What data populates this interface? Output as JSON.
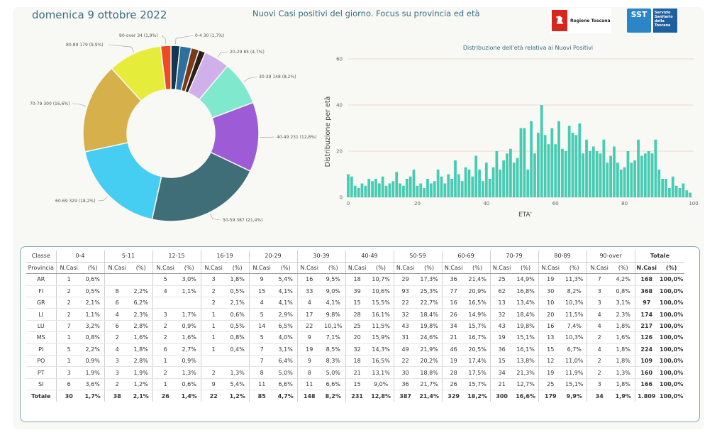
{
  "header": {
    "date": "domenica 9 ottobre 2022",
    "title": "Nuovi Casi positivi del giorno. Focus su provincia ed età",
    "logo_rt_text": "Regione Toscana",
    "logo_sst_abbr": "SST",
    "logo_sst_text": "Servizio Sanitario della Toscana"
  },
  "chart_data": [
    {
      "type": "pie",
      "variant": "donut",
      "slices": [
        {
          "label": "0-4 30 (1,7%)",
          "value": 30,
          "color": "#11384f"
        },
        {
          "label": "5-11",
          "value": 38,
          "color": "#2f6f9e"
        },
        {
          "label": "12-15",
          "value": 26,
          "color": "#7a3a18"
        },
        {
          "label": "16-19",
          "value": 22,
          "color": "#2b1f1a"
        },
        {
          "label": "20-29 85 (4,7%)",
          "value": 85,
          "color": "#d0b0ea"
        },
        {
          "label": "30-39 148 (8,2%)",
          "value": 148,
          "color": "#7fe8cd"
        },
        {
          "label": "40-49 231 (12,8%)",
          "value": 231,
          "color": "#9d5bd6"
        },
        {
          "label": "50-59 387 (21,4%)",
          "value": 387,
          "color": "#3f6e78"
        },
        {
          "label": "60-69 329 (18,2%)",
          "value": 329,
          "color": "#45cdf2"
        },
        {
          "label": "70-79 300 (16,6%)",
          "value": 300,
          "color": "#d6b04a"
        },
        {
          "label": "80-89 179 (9,9%)",
          "value": 179,
          "color": "#e6ec3a"
        },
        {
          "label": "90-over 34 (1,9%)",
          "value": 34,
          "color": "#ee4a24"
        }
      ]
    },
    {
      "type": "bar",
      "title": "Distribuzione dell'età relativa ai Nuovi Positivi",
      "xlabel": "ETA'",
      "ylabel": "Distribuzione per età",
      "xlim": [
        0,
        100
      ],
      "ylim": [
        0,
        60
      ],
      "xticks": [
        0,
        20,
        40,
        60,
        80,
        100
      ],
      "yticks": [
        0,
        20,
        40,
        60
      ],
      "color": "#48cbb3",
      "x": [
        0,
        1,
        2,
        3,
        4,
        5,
        6,
        7,
        8,
        9,
        10,
        11,
        12,
        13,
        14,
        15,
        16,
        17,
        18,
        19,
        20,
        21,
        22,
        23,
        24,
        25,
        26,
        27,
        28,
        29,
        30,
        31,
        32,
        33,
        34,
        35,
        36,
        37,
        38,
        39,
        40,
        41,
        42,
        43,
        44,
        45,
        46,
        47,
        48,
        49,
        50,
        51,
        52,
        53,
        54,
        55,
        56,
        57,
        58,
        59,
        60,
        61,
        62,
        63,
        64,
        65,
        66,
        67,
        68,
        69,
        70,
        71,
        72,
        73,
        74,
        75,
        76,
        77,
        78,
        79,
        80,
        81,
        82,
        83,
        84,
        85,
        86,
        87,
        88,
        89,
        90,
        91,
        92,
        93,
        94,
        95,
        96,
        97,
        98,
        99
      ],
      "values": [
        10,
        9,
        5,
        4,
        6,
        5,
        8,
        7,
        8,
        6,
        9,
        5,
        6,
        7,
        11,
        6,
        5,
        8,
        9,
        12,
        5,
        6,
        4,
        8,
        6,
        7,
        12,
        9,
        6,
        10,
        8,
        16,
        10,
        7,
        13,
        12,
        9,
        18,
        12,
        7,
        15,
        8,
        13,
        20,
        12,
        16,
        19,
        21,
        15,
        17,
        30,
        30,
        12,
        33,
        19,
        28,
        40,
        27,
        23,
        30,
        23,
        33,
        21,
        20,
        31,
        28,
        27,
        32,
        19,
        25,
        20,
        22,
        20,
        19,
        25,
        15,
        18,
        22,
        15,
        12,
        13,
        20,
        15,
        16,
        25,
        18,
        19,
        20,
        19,
        25,
        12,
        8,
        8,
        4,
        9,
        5,
        4,
        6,
        3,
        2
      ]
    },
    {
      "type": "table",
      "columns_top": [
        "Classe",
        "0-4",
        "5-11",
        "12-15",
        "16-19",
        "20-29",
        "30-39",
        "40-49",
        "50-59",
        "60-69",
        "70-79",
        "80-89",
        "90-over",
        "Totale"
      ],
      "columns_sub": [
        "Provincia",
        "N.Casi",
        "(%)"
      ],
      "rows": [
        {
          "prov": "AR",
          "cells": [
            "1",
            "0,6%",
            "",
            "",
            "5",
            "3,0%",
            "3",
            "1,8%",
            "9",
            "5,4%",
            "16",
            "9,5%",
            "18",
            "10,7%",
            "29",
            "17,3%",
            "36",
            "21,4%",
            "25",
            "14,9%",
            "19",
            "11,3%",
            "7",
            "4,2%",
            "168",
            "100,0%"
          ]
        },
        {
          "prov": "FI",
          "cells": [
            "2",
            "0,5%",
            "8",
            "2,2%",
            "4",
            "1,1%",
            "2",
            "0,5%",
            "15",
            "4,1%",
            "33",
            "9,0%",
            "39",
            "10,6%",
            "93",
            "25,3%",
            "77",
            "20,9%",
            "62",
            "16,8%",
            "30",
            "8,2%",
            "3",
            "0,8%",
            "368",
            "100,0%"
          ]
        },
        {
          "prov": "GR",
          "cells": [
            "2",
            "2,1%",
            "6",
            "6,2%",
            "",
            "",
            "2",
            "2,1%",
            "4",
            "4,1%",
            "4",
            "4,1%",
            "15",
            "15,5%",
            "22",
            "22,7%",
            "16",
            "16,5%",
            "13",
            "13,4%",
            "10",
            "10,3%",
            "3",
            "3,1%",
            "97",
            "100,0%"
          ]
        },
        {
          "prov": "LI",
          "cells": [
            "2",
            "1,1%",
            "4",
            "2,3%",
            "3",
            "1,7%",
            "1",
            "0,6%",
            "5",
            "2,9%",
            "17",
            "9,8%",
            "28",
            "16,1%",
            "32",
            "18,4%",
            "26",
            "14,9%",
            "32",
            "18,4%",
            "20",
            "11,5%",
            "4",
            "2,3%",
            "174",
            "100,0%"
          ]
        },
        {
          "prov": "LU",
          "cells": [
            "7",
            "3,2%",
            "6",
            "2,8%",
            "2",
            "0,9%",
            "1",
            "0,5%",
            "14",
            "6,5%",
            "22",
            "10,1%",
            "25",
            "11,5%",
            "43",
            "19,8%",
            "34",
            "15,7%",
            "43",
            "19,8%",
            "16",
            "7,4%",
            "4",
            "1,8%",
            "217",
            "100,0%"
          ]
        },
        {
          "prov": "MS",
          "cells": [
            "1",
            "0,8%",
            "2",
            "1,6%",
            "2",
            "1,6%",
            "1",
            "0,8%",
            "5",
            "4,0%",
            "9",
            "7,1%",
            "20",
            "15,9%",
            "31",
            "24,6%",
            "21",
            "16,7%",
            "19",
            "15,1%",
            "13",
            "10,3%",
            "2",
            "1,6%",
            "126",
            "100,0%"
          ]
        },
        {
          "prov": "PI",
          "cells": [
            "5",
            "2,2%",
            "4",
            "1,8%",
            "6",
            "2,7%",
            "1",
            "0,4%",
            "7",
            "3,1%",
            "19",
            "8,5%",
            "32",
            "14,3%",
            "49",
            "21,9%",
            "46",
            "20,5%",
            "36",
            "16,1%",
            "15",
            "6,7%",
            "4",
            "1,8%",
            "224",
            "100,0%"
          ]
        },
        {
          "prov": "PO",
          "cells": [
            "1",
            "0,9%",
            "3",
            "2,8%",
            "1",
            "0,9%",
            "",
            "",
            "7",
            "6,4%",
            "9",
            "8,3%",
            "18",
            "16,5%",
            "22",
            "20,2%",
            "19",
            "17,4%",
            "15",
            "13,8%",
            "12",
            "11,0%",
            "2",
            "1,8%",
            "109",
            "100,0%"
          ]
        },
        {
          "prov": "PT",
          "cells": [
            "3",
            "1,9%",
            "3",
            "1,9%",
            "2",
            "1,3%",
            "2",
            "1,3%",
            "8",
            "5,0%",
            "8",
            "5,0%",
            "21",
            "13,1%",
            "30",
            "18,8%",
            "28",
            "17,5%",
            "34",
            "21,3%",
            "19",
            "11,9%",
            "2",
            "1,3%",
            "160",
            "100,0%"
          ]
        },
        {
          "prov": "SI",
          "cells": [
            "6",
            "3,6%",
            "2",
            "1,2%",
            "1",
            "0,6%",
            "9",
            "5,4%",
            "11",
            "6,6%",
            "11",
            "6,6%",
            "15",
            "9,0%",
            "36",
            "21,7%",
            "26",
            "15,7%",
            "21",
            "12,7%",
            "25",
            "15,1%",
            "3",
            "1,8%",
            "166",
            "100,0%"
          ]
        }
      ],
      "total": {
        "prov": "Totale",
        "cells": [
          "30",
          "1,7%",
          "38",
          "2,1%",
          "26",
          "1,4%",
          "22",
          "1,2%",
          "85",
          "4,7%",
          "148",
          "8,2%",
          "231",
          "12,8%",
          "387",
          "21,4%",
          "329",
          "18,2%",
          "300",
          "16,6%",
          "179",
          "9,9%",
          "34",
          "1,9%",
          "1.809",
          "100,0%"
        ]
      }
    }
  ]
}
